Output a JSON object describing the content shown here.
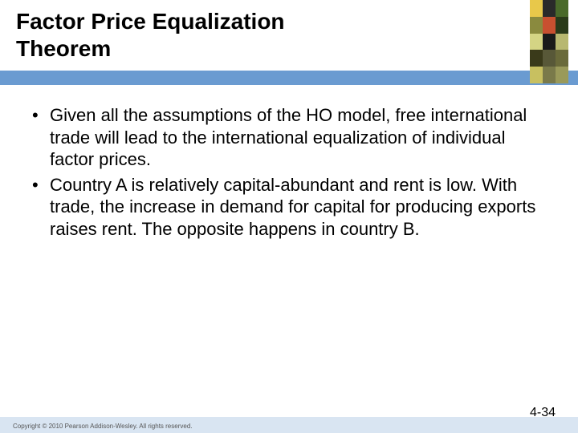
{
  "header": {
    "title_line1": "Factor Price Equalization",
    "title_line2": "Theorem",
    "bar_color": "#6a9bd1"
  },
  "corner_graphic": {
    "columns": [
      [
        "#e8c84a",
        "#8a8a3e",
        "#d4d484",
        "#3a3a1a",
        "#c8c060"
      ],
      [
        "#2a2a2a",
        "#c85030",
        "#1a1a1a",
        "#585838",
        "#7a7a4a"
      ],
      [
        "#4a6a2a",
        "#2a3a1a",
        "#b8b870",
        "#6a6a3a",
        "#9a9a5a"
      ]
    ]
  },
  "bullets": [
    "Given all the assumptions of the HO model, free international trade will lead to the international equalization of individual factor prices.",
    "Country A is relatively capital-abundant and rent is low. With trade, the increase in demand for capital for producing exports raises rent. The opposite happens in country B."
  ],
  "footer": {
    "copyright": "Copyright © 2010 Pearson Addison-Wesley. All rights reserved.",
    "page": "4-34",
    "bar_color": "#d9e5f2"
  }
}
